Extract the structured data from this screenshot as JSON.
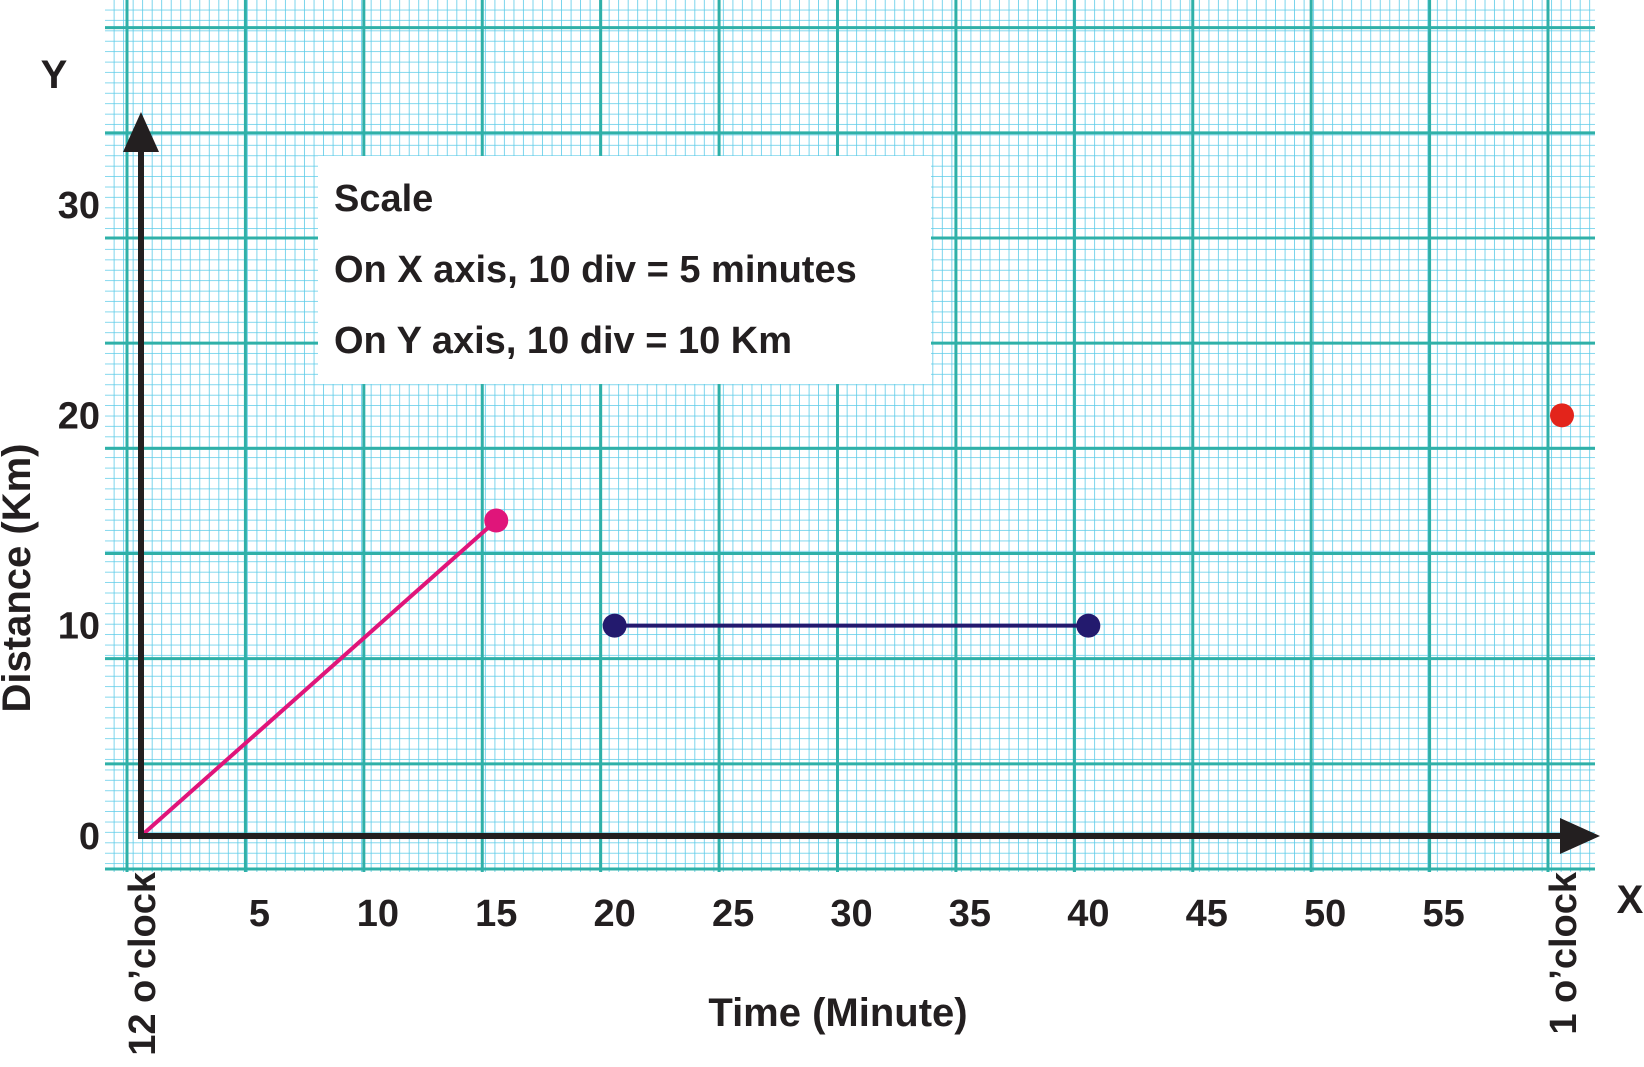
{
  "chart_data": {
    "type": "line",
    "x_axis_letter": "X",
    "y_axis_letter": "Y",
    "xlabel": "Time (Minute)",
    "ylabel": "Distance (Km)",
    "xlim": [
      0,
      60
    ],
    "ylim": [
      0,
      30
    ],
    "x_ticks": [
      {
        "value": 0,
        "label": "12 o’clock"
      },
      {
        "value": 5,
        "label": "5"
      },
      {
        "value": 10,
        "label": "10"
      },
      {
        "value": 15,
        "label": "15"
      },
      {
        "value": 20,
        "label": "20"
      },
      {
        "value": 25,
        "label": "25"
      },
      {
        "value": 30,
        "label": "30"
      },
      {
        "value": 35,
        "label": "35"
      },
      {
        "value": 40,
        "label": "40"
      },
      {
        "value": 45,
        "label": "45"
      },
      {
        "value": 50,
        "label": "50"
      },
      {
        "value": 55,
        "label": "55"
      },
      {
        "value": 60,
        "label": "1 o’clock"
      }
    ],
    "y_ticks": [
      {
        "value": 0,
        "label": "0"
      },
      {
        "value": 10,
        "label": "10"
      },
      {
        "value": 20,
        "label": "20"
      },
      {
        "value": 30,
        "label": "30"
      }
    ],
    "series": [
      {
        "color": "#e0157a",
        "points": [
          [
            0,
            0
          ],
          [
            15,
            15
          ]
        ],
        "marker_at": [
          [
            15,
            15
          ]
        ]
      },
      {
        "color": "#231a6e",
        "points": [
          [
            20,
            10
          ],
          [
            40,
            10
          ]
        ],
        "marker_at": [
          [
            20,
            10
          ],
          [
            40,
            10
          ]
        ]
      },
      {
        "color": "#e3241b",
        "points": [
          [
            60,
            20
          ]
        ],
        "marker_at": [
          [
            60,
            20
          ]
        ]
      }
    ],
    "grid": true,
    "grid_color": "#4fc3e0",
    "annotation": {
      "title": "Scale",
      "lines": [
        "On X axis,  10 div = 5 minutes",
        "On Y axis,  10 div = 10 Km"
      ]
    }
  }
}
